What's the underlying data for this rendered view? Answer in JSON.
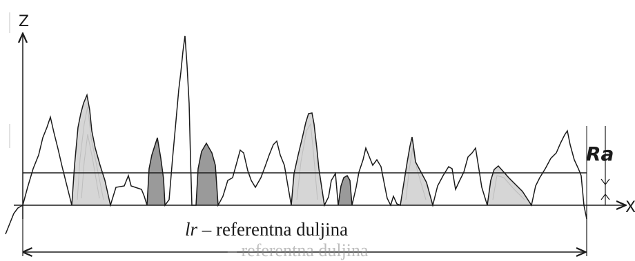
{
  "axes": {
    "z_label": "Z",
    "x_label": "X"
  },
  "ra_label": "Ra",
  "reference_length": {
    "symbol": "lr",
    "text": " – referentna duljina"
  },
  "colors": {
    "line": "#1a1a1a",
    "shade_dark": "#9a9a9a",
    "shade_light": "#d6d6d6"
  }
}
